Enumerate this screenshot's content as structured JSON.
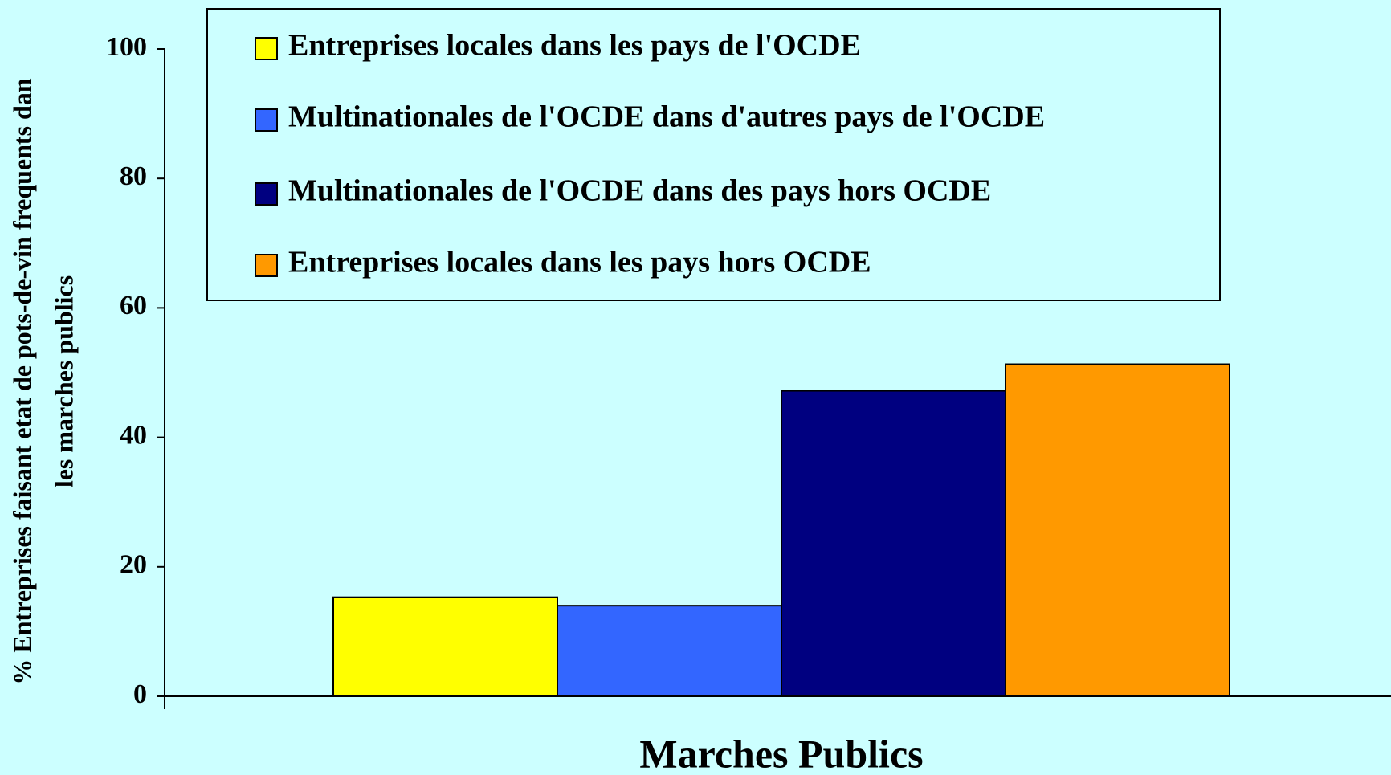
{
  "chart_data": {
    "type": "bar",
    "categories": [
      "Marches Publics"
    ],
    "series": [
      {
        "name": "Entreprises locales dans les pays de l'OCDE",
        "color": "#ffff00",
        "values": [
          15.3
        ]
      },
      {
        "name": "Multinationales de l'OCDE dans d'autres pays de l'OCDE",
        "color": "#3366ff",
        "values": [
          14
        ]
      },
      {
        "name": "Multinationales de l'OCDE dans des pays hors OCDE",
        "color": "#000080",
        "values": [
          47.2
        ]
      },
      {
        "name": "Entreprises locales dans les pays hors OCDE",
        "color": "#ff9900",
        "values": [
          51.3
        ]
      }
    ],
    "ylabel": [
      "% Entreprises faisant etat de pots-de-vin frequents dan",
      "les marches publics"
    ],
    "ylim": [
      0,
      100
    ],
    "yticks": [
      0,
      20,
      40,
      60,
      80,
      100
    ]
  }
}
